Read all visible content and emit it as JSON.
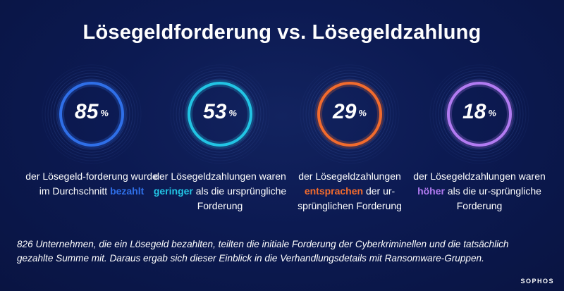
{
  "title": "Lösegeldforderung vs. Lösegeldzahlung",
  "stats": [
    {
      "value": "85",
      "unit": "%",
      "color": "#2f6fe8",
      "text_before": "der Lösegeld-forderung wurde im Durchschnitt",
      "highlight": "bezahlt",
      "text_after": ""
    },
    {
      "value": "53",
      "unit": "%",
      "color": "#22c4e4",
      "text_before": "der Lösegeldzahlungen waren",
      "highlight": "geringer",
      "text_after": "als die ursprüngliche Forderung"
    },
    {
      "value": "29",
      "unit": "%",
      "color": "#f26b2d",
      "text_before": "der Lösegeldzahlungen",
      "highlight": "entsprachen",
      "text_after": "der ur-sprünglichen Forderung"
    },
    {
      "value": "18",
      "unit": "%",
      "color": "#b27bf2",
      "text_before": "der Lösegeldzahlungen waren",
      "highlight": "höher",
      "text_after": "als die ur-sprüngliche Forderung"
    }
  ],
  "footnote": "826 Unternehmen, die ein Lösegeld bezahlten, teilten die initiale Forderung der Cyberkriminellen und die tatsächlich gezahlte Summe mit. Daraus ergab sich dieser Einblick in die Verhandlungsdetails mit Ransomware-Gruppen.",
  "brand": "SOPHOS"
}
